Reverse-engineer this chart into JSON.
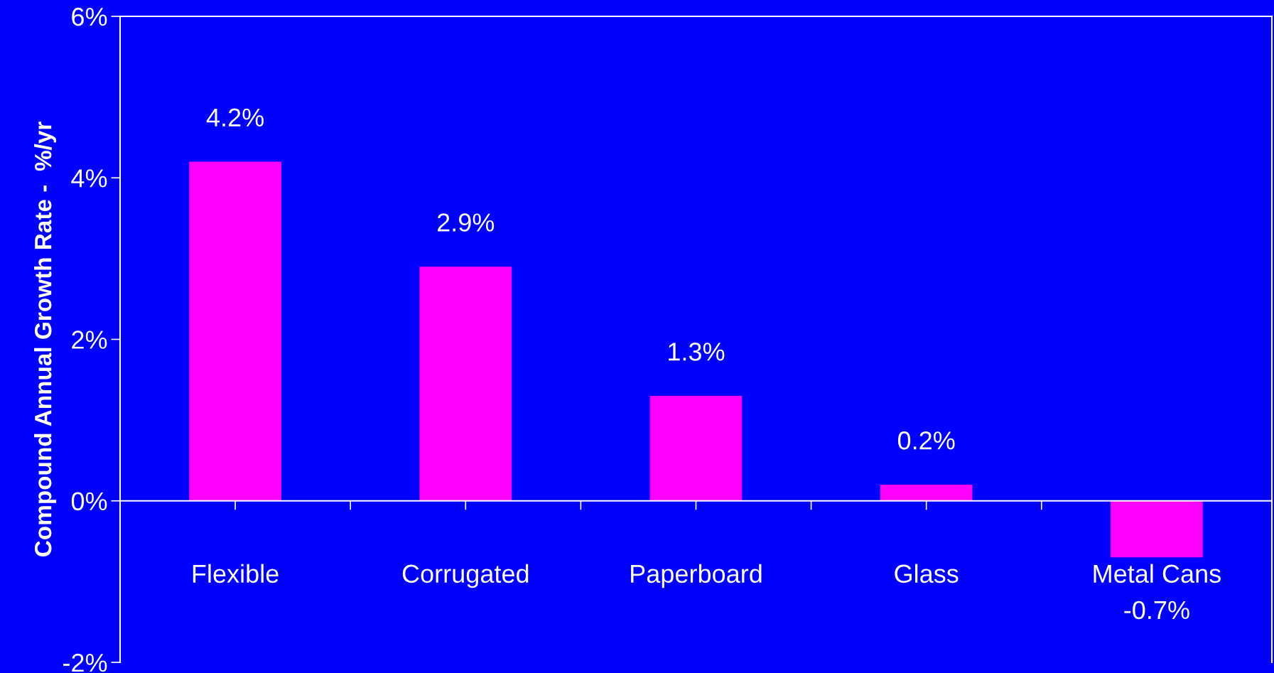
{
  "chart_data": {
    "type": "bar",
    "ylabel": "Compound Annual Growth Rate -  %/yr",
    "categories": [
      "Flexible",
      "Corrugated",
      "Paperboard",
      "Glass",
      "Metal Cans"
    ],
    "values": [
      4.2,
      2.9,
      1.3,
      0.2,
      -0.7
    ],
    "value_labels": [
      "4.2%",
      "2.9%",
      "1.3%",
      "0.2%",
      "-0.7%"
    ],
    "color": "#ff00ff",
    "ylim": [
      -2,
      6
    ],
    "yticks": [
      {
        "value": -2,
        "label": "-2%"
      },
      {
        "value": 0,
        "label": "0%"
      },
      {
        "value": 2,
        "label": "2%"
      },
      {
        "value": 4,
        "label": "4%"
      },
      {
        "value": 6,
        "label": "6%"
      }
    ],
    "grid": false,
    "legend": false
  }
}
